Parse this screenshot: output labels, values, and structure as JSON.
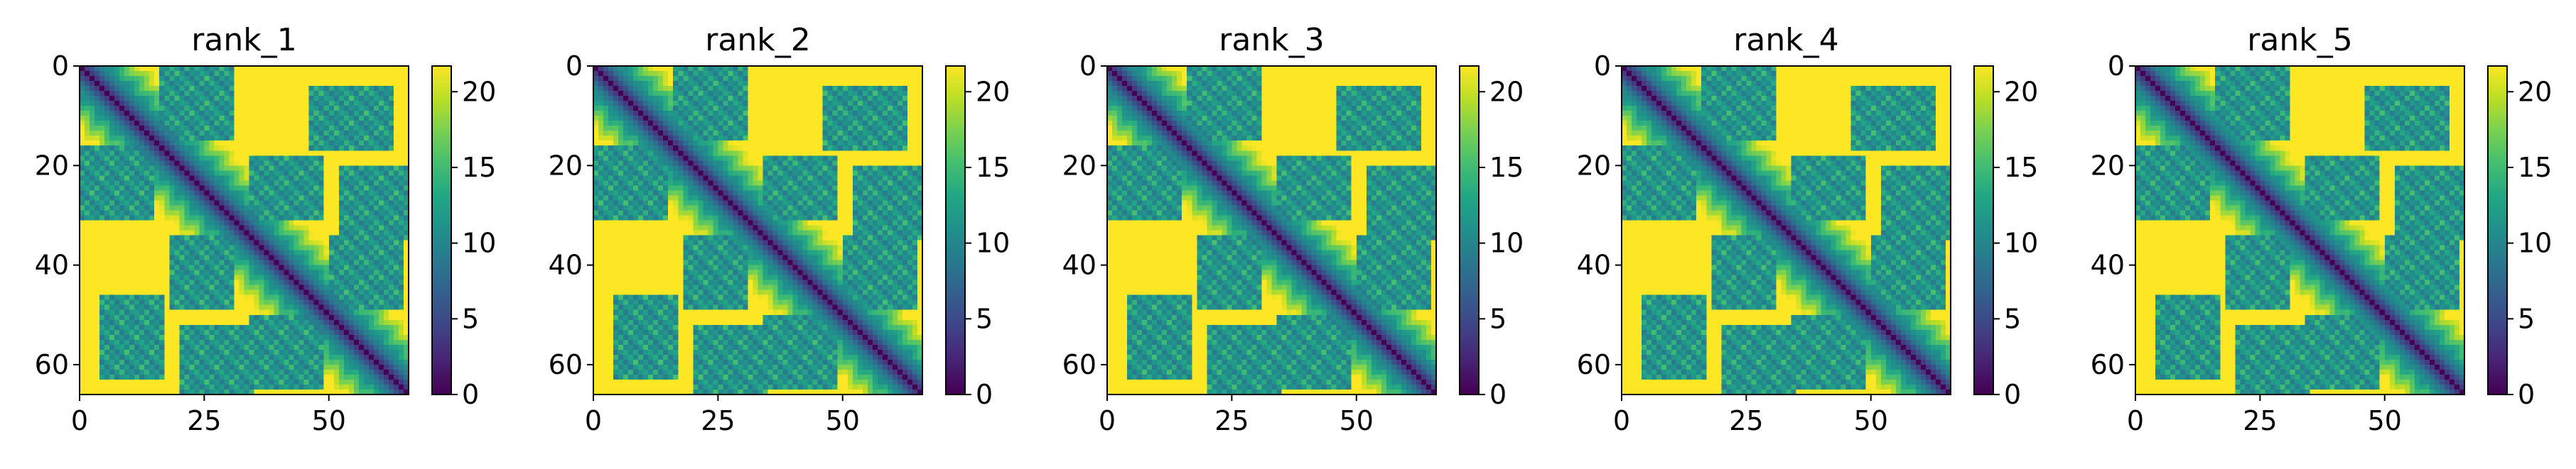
{
  "chart_data": [
    {
      "type": "heatmap",
      "title": "rank_1",
      "matrix_size": 66,
      "xlim": [
        0,
        66
      ],
      "ylim": [
        66,
        0
      ],
      "xticks": [
        0,
        25,
        50
      ],
      "yticks": [
        0,
        20,
        40,
        60
      ],
      "colorbar": {
        "cmap": "viridis",
        "vmin": 0,
        "vmax": 21.7,
        "ticks": [
          0,
          5,
          10,
          15,
          20
        ]
      },
      "structure": {
        "diagonal_value": 0,
        "near_diagonal_value": 4,
        "far_value": 21.7,
        "contact_blocks": [
          [
            0,
            14,
            16,
            30
          ],
          [
            18,
            30,
            34,
            48
          ],
          [
            34,
            48,
            50,
            64
          ],
          [
            4,
            16,
            46,
            62
          ],
          [
            20,
            34,
            52,
            66
          ]
        ]
      }
    },
    {
      "type": "heatmap",
      "title": "rank_2",
      "matrix_size": 66,
      "xlim": [
        0,
        66
      ],
      "ylim": [
        66,
        0
      ],
      "xticks": [
        0,
        25,
        50
      ],
      "yticks": [
        0,
        20,
        40,
        60
      ],
      "colorbar": {
        "cmap": "viridis",
        "vmin": 0,
        "vmax": 21.7,
        "ticks": [
          0,
          5,
          10,
          15,
          20
        ]
      },
      "structure": {
        "diagonal_value": 0,
        "near_diagonal_value": 4,
        "far_value": 21.7,
        "contact_blocks": [
          [
            0,
            14,
            16,
            30
          ],
          [
            18,
            30,
            34,
            48
          ],
          [
            34,
            48,
            50,
            64
          ],
          [
            4,
            16,
            46,
            62
          ],
          [
            20,
            34,
            52,
            66
          ]
        ]
      }
    },
    {
      "type": "heatmap",
      "title": "rank_3",
      "matrix_size": 66,
      "xlim": [
        0,
        66
      ],
      "ylim": [
        66,
        0
      ],
      "xticks": [
        0,
        25,
        50
      ],
      "yticks": [
        0,
        20,
        40,
        60
      ],
      "colorbar": {
        "cmap": "viridis",
        "vmin": 0,
        "vmax": 21.7,
        "ticks": [
          0,
          5,
          10,
          15,
          20
        ]
      },
      "structure": {
        "diagonal_value": 0,
        "near_diagonal_value": 4,
        "far_value": 21.7,
        "contact_blocks": [
          [
            0,
            14,
            16,
            30
          ],
          [
            18,
            30,
            34,
            48
          ],
          [
            34,
            48,
            50,
            64
          ],
          [
            4,
            16,
            46,
            62
          ],
          [
            20,
            34,
            52,
            66
          ]
        ]
      }
    },
    {
      "type": "heatmap",
      "title": "rank_4",
      "matrix_size": 66,
      "xlim": [
        0,
        66
      ],
      "ylim": [
        66,
        0
      ],
      "xticks": [
        0,
        25,
        50
      ],
      "yticks": [
        0,
        20,
        40,
        60
      ],
      "colorbar": {
        "cmap": "viridis",
        "vmin": 0,
        "vmax": 21.7,
        "ticks": [
          0,
          5,
          10,
          15,
          20
        ]
      },
      "structure": {
        "diagonal_value": 0,
        "near_diagonal_value": 4,
        "far_value": 21.7,
        "contact_blocks": [
          [
            0,
            14,
            16,
            30
          ],
          [
            18,
            30,
            34,
            48
          ],
          [
            34,
            48,
            50,
            64
          ],
          [
            4,
            16,
            46,
            62
          ],
          [
            20,
            34,
            52,
            66
          ]
        ]
      }
    },
    {
      "type": "heatmap",
      "title": "rank_5",
      "matrix_size": 66,
      "xlim": [
        0,
        66
      ],
      "ylim": [
        66,
        0
      ],
      "xticks": [
        0,
        25,
        50
      ],
      "yticks": [
        0,
        20,
        40,
        60
      ],
      "colorbar": {
        "cmap": "viridis",
        "vmin": 0,
        "vmax": 21.7,
        "ticks": [
          0,
          5,
          10,
          15,
          20
        ]
      },
      "structure": {
        "diagonal_value": 0,
        "near_diagonal_value": 4,
        "far_value": 21.7,
        "contact_blocks": [
          [
            0,
            14,
            16,
            30
          ],
          [
            18,
            30,
            34,
            48
          ],
          [
            34,
            48,
            50,
            64
          ],
          [
            4,
            16,
            46,
            62
          ],
          [
            20,
            34,
            52,
            66
          ]
        ]
      }
    }
  ]
}
